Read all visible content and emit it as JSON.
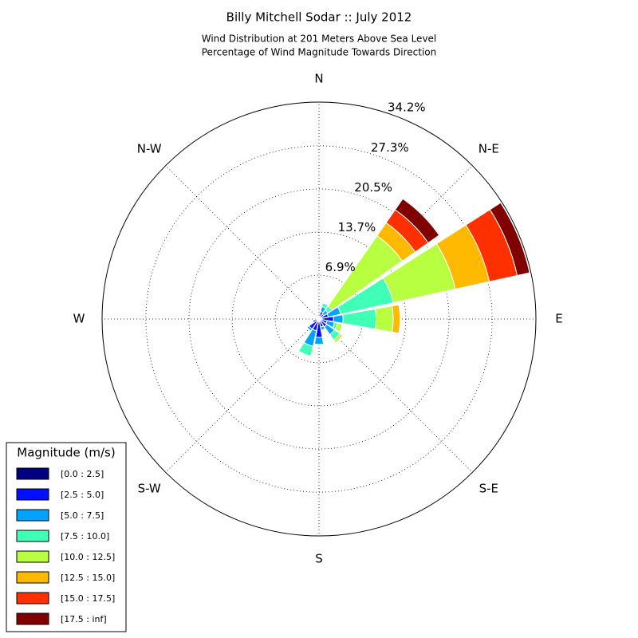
{
  "chart_data": {
    "type": "windrose",
    "title": "Billy Mitchell Sodar :: July 2012",
    "subtitle": [
      "Wind Distribution at 201 Meters Above Sea Level",
      "Percentage of Wind Magnitude Towards Direction"
    ],
    "categories": [
      "N",
      null,
      "N-E",
      null,
      "E",
      null,
      "S-E",
      null,
      "S",
      null,
      "S-W",
      null,
      "W",
      null,
      "N-W",
      null
    ],
    "rlim": [
      0,
      34.2
    ],
    "rticks": [
      {
        "value": 6.9,
        "label": "6.9%"
      },
      {
        "value": 13.7,
        "label": "13.7%"
      },
      {
        "value": 20.5,
        "label": "20.5%"
      },
      {
        "value": 27.3,
        "label": "27.3%"
      },
      {
        "value": 34.2,
        "label": "34.2%"
      }
    ],
    "grid": true,
    "legend_title": "Magnitude (m/s)",
    "legend_position": "lower left",
    "series": [
      {
        "name": "[0.0 : 2.5]",
        "color": "#000080",
        "values": [
          0.4,
          0.4,
          0.3,
          0.5,
          0.5,
          0.3,
          0.3,
          0.3,
          0.4,
          0.4,
          0.4,
          0.3,
          0.3,
          0.3,
          0.3,
          0.3
        ]
      },
      {
        "name": "[2.5 : 5.0]",
        "color": "#0010ff",
        "values": [
          0.4,
          0.8,
          0.6,
          1.0,
          1.8,
          1.0,
          1.2,
          1.0,
          2.5,
          1.5,
          1.5,
          0.7,
          0.2,
          0.2,
          0.2,
          0.2
        ]
      },
      {
        "name": "[5.0 : 7.5]",
        "color": "#00a4ff",
        "values": [
          0,
          0.8,
          0.8,
          2.0,
          1.5,
          1.2,
          1.5,
          0.5,
          1.1,
          2.5,
          0.4,
          0,
          0,
          0,
          0,
          0
        ]
      },
      {
        "name": "[7.5 : 10.0]",
        "color": "#40ffb7",
        "values": [
          0,
          0.6,
          0.8,
          8.5,
          5.2,
          0.5,
          1.0,
          0,
          0,
          1.6,
          0,
          0,
          0,
          0,
          0,
          0
        ]
      },
      {
        "name": "[10.0 : 12.5]",
        "color": "#b7ff40",
        "values": [
          0,
          0,
          13.5,
          10.0,
          2.7,
          0.8,
          0.6,
          0,
          0,
          0,
          0,
          0,
          0,
          0,
          0,
          0
        ]
      },
      {
        "name": "[12.5 : 15.0]",
        "color": "#ffb900",
        "values": [
          0,
          0,
          2.5,
          5.5,
          1.1,
          0,
          0,
          0,
          0,
          0,
          0,
          0,
          0,
          0,
          0,
          0
        ]
      },
      {
        "name": "[15.0 : 17.5]",
        "color": "#ff3000",
        "values": [
          0,
          0,
          2.5,
          4.5,
          0,
          0,
          0,
          0,
          0,
          0,
          0,
          0,
          0,
          0,
          0,
          0
        ]
      },
      {
        "name": "[17.5 : inf]",
        "color": "#800000",
        "values": [
          0,
          0,
          2.1,
          2.0,
          0,
          0,
          0,
          0,
          0,
          0,
          0,
          0,
          0,
          0,
          0,
          0
        ]
      }
    ]
  }
}
